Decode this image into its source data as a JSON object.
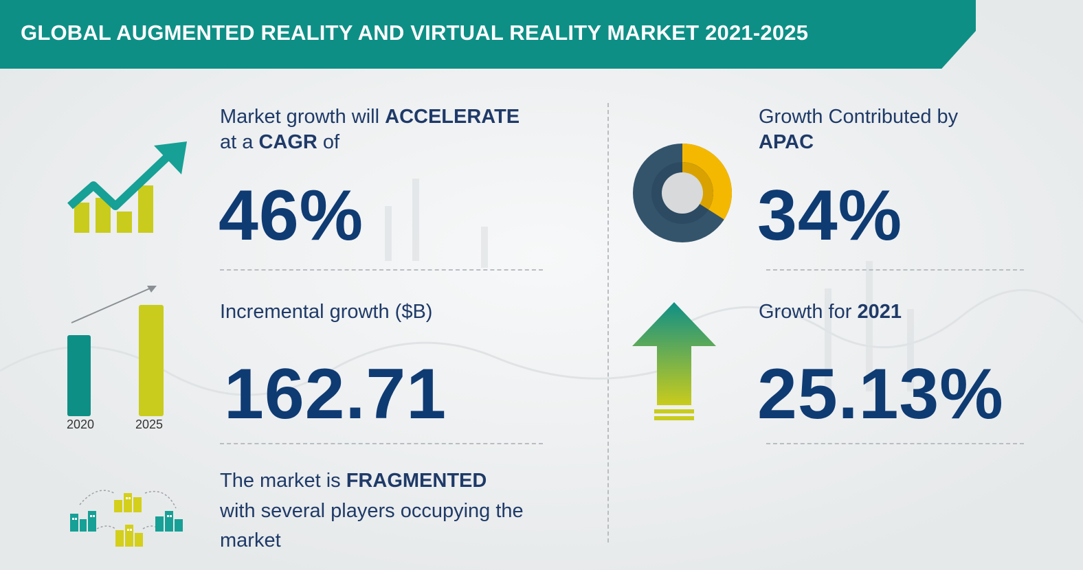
{
  "header": {
    "title": "GLOBAL AUGMENTED REALITY AND VIRTUAL REALITY MARKET 2021-2025"
  },
  "cagr": {
    "line1_prefix": "Market growth will ",
    "line1_bold": "ACCELERATE",
    "line2_prefix": "at a ",
    "line2_bold": "CAGR",
    "line2_suffix": " of",
    "value": "46%"
  },
  "incremental": {
    "label": "Incremental growth ($B)",
    "value": "162.71",
    "bar_years": [
      "2020",
      "2025"
    ]
  },
  "fragmented": {
    "line1_prefix": "The market is ",
    "line1_bold": "FRAGMENTED",
    "line2": "with several players occupying the",
    "line3": "market"
  },
  "apac": {
    "line1": "Growth Contributed by",
    "line2_bold": "APAC",
    "value": "34%",
    "share_fraction": 0.34
  },
  "growth2021": {
    "label_prefix": "Growth for ",
    "label_bold": "2021",
    "value": "25.13%"
  },
  "colors": {
    "teal": "#0e8f86",
    "navy": "#0f3b73",
    "yellow": "#f5b800",
    "lime": "#c9cc1c",
    "slate": "#34546c"
  },
  "icons": [
    "growth-chart-icon",
    "bar-growth-icon",
    "fragmented-buildings-icon",
    "donut-chart-icon",
    "up-arrow-icon"
  ]
}
